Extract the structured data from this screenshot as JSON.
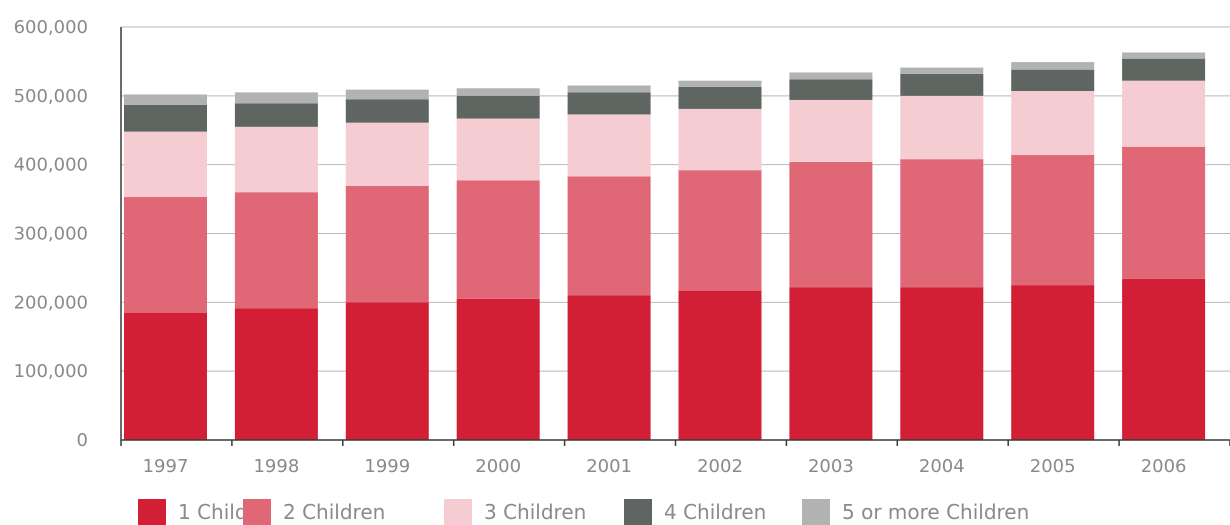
{
  "chart_data": {
    "type": "bar",
    "stacked": true,
    "categories": [
      "1997",
      "1998",
      "1999",
      "2000",
      "2001",
      "2002",
      "2003",
      "2004",
      "2005",
      "2006"
    ],
    "series": [
      {
        "name": "1 Child",
        "color": "#d21f36",
        "values": [
          185000,
          191000,
          200000,
          205000,
          210000,
          217000,
          222000,
          222000,
          225000,
          234000
        ]
      },
      {
        "name": "2 Children",
        "color": "#e06876",
        "values": [
          168000,
          169000,
          169000,
          172000,
          173000,
          175000,
          182000,
          186000,
          189000,
          192000
        ]
      },
      {
        "name": "3 Children",
        "color": "#f6ccd3",
        "values": [
          95000,
          95000,
          92000,
          90000,
          90000,
          89000,
          90000,
          92000,
          93000,
          96000
        ]
      },
      {
        "name": "4 Children",
        "color": "#5f6662",
        "values": [
          39000,
          34000,
          34000,
          33000,
          32000,
          32000,
          30000,
          32000,
          31000,
          32000
        ]
      },
      {
        "name": "5 or more Children",
        "color": "#b1b3b2",
        "values": [
          15000,
          16000,
          14000,
          11000,
          10000,
          9000,
          10000,
          9000,
          11000,
          9000
        ]
      }
    ],
    "ylim": [
      0,
      600000
    ],
    "yticks": [
      0,
      100000,
      200000,
      300000,
      400000,
      500000,
      600000
    ],
    "ytick_labels": [
      "0",
      "100,000",
      "200,000",
      "300,000",
      "400,000",
      "500,000",
      "600,000"
    ],
    "grid": true,
    "legend_position": "bottom"
  }
}
